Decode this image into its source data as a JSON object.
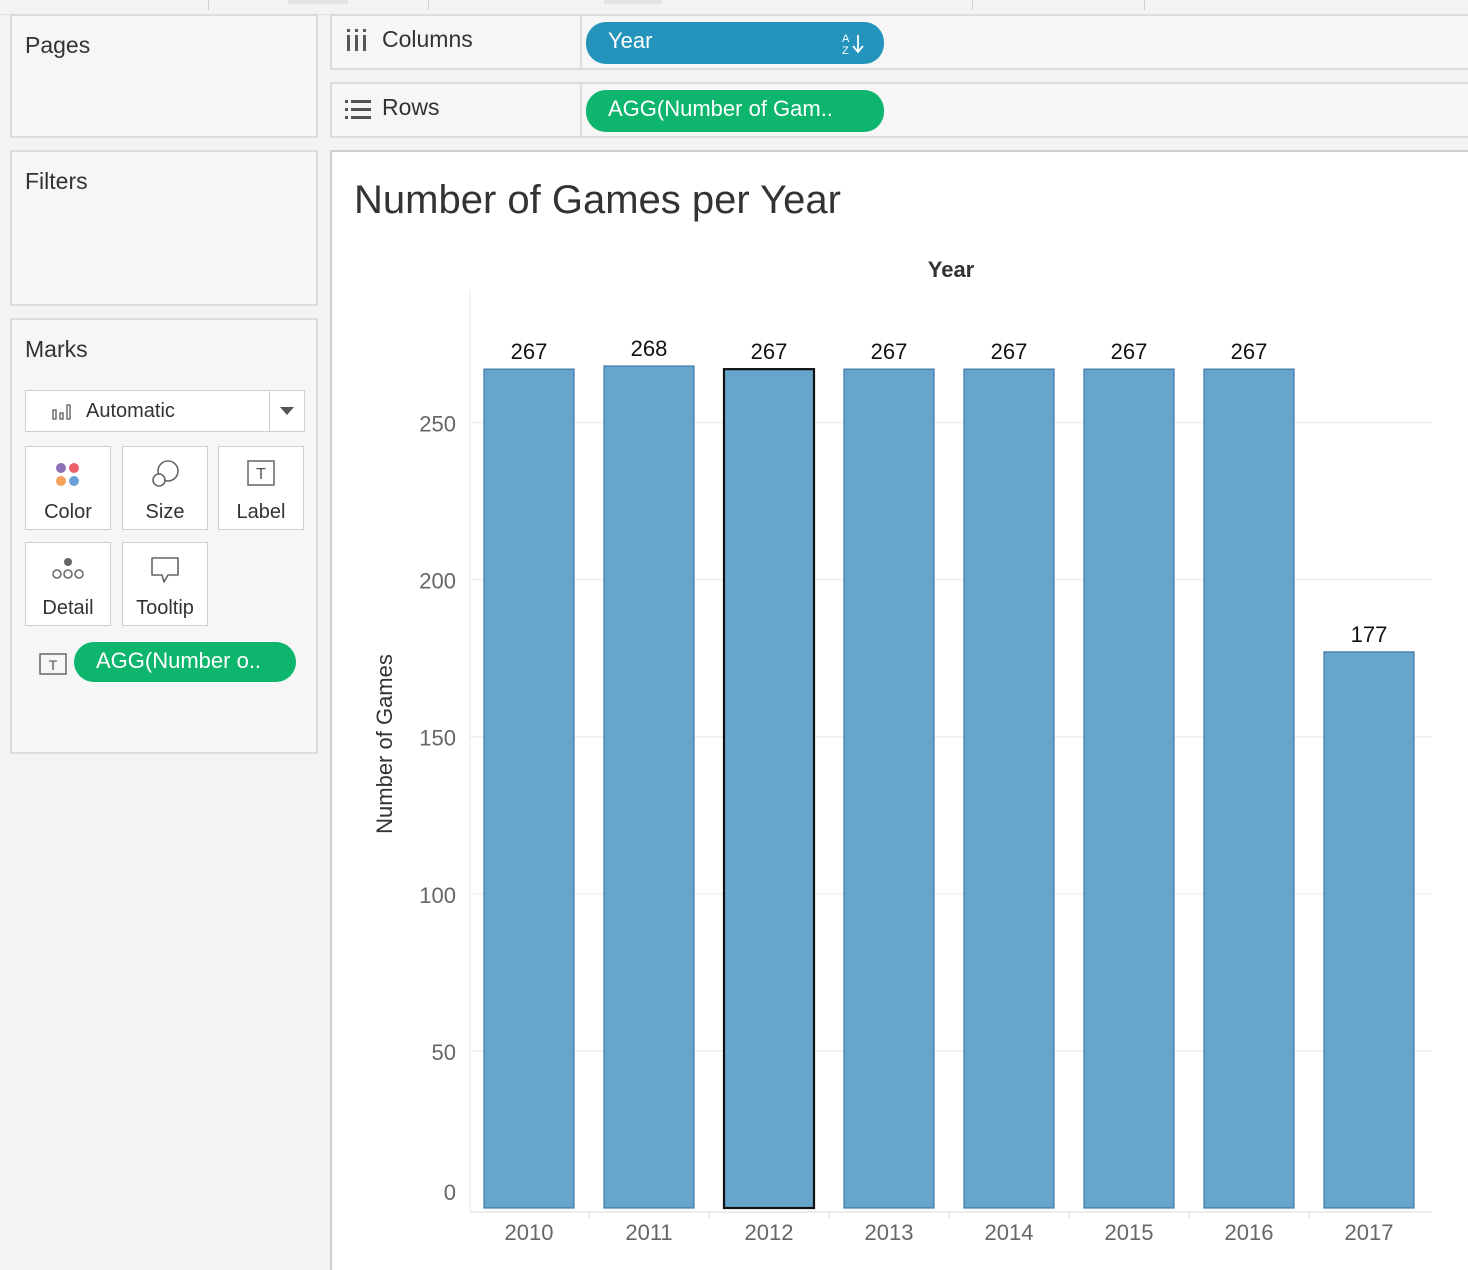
{
  "panels": {
    "pages": {
      "title": "Pages"
    },
    "filters": {
      "title": "Filters"
    },
    "marks": {
      "title": "Marks",
      "mark_type": "Automatic",
      "cards": {
        "color": "Color",
        "size": "Size",
        "label": "Label",
        "detail": "Detail",
        "tooltip": "Tooltip"
      },
      "label_pill": "AGG(Number o.."
    }
  },
  "shelves": {
    "columns": {
      "label": "Columns",
      "pill": "Year"
    },
    "rows": {
      "label": "Rows",
      "pill": "AGG(Number of Gam.."
    }
  },
  "view": {
    "title": "Number of Games per Year"
  },
  "colors": {
    "bar": "#68a5cd",
    "bar_stroke": "#3f79a8",
    "pill_blue": "#2494bd",
    "pill_green": "#0db56d"
  },
  "chart_data": {
    "type": "bar",
    "title": "Number of Games per Year",
    "xlabel": "Year",
    "ylabel": "Number of Games",
    "categories": [
      "2010",
      "2011",
      "2012",
      "2013",
      "2014",
      "2015",
      "2016",
      "2017"
    ],
    "values": [
      267,
      268,
      267,
      267,
      267,
      267,
      267,
      177
    ],
    "data_labels": [
      "267",
      "268",
      "267",
      "267",
      "267",
      "267",
      "267",
      "177"
    ],
    "yticks": [
      0,
      50,
      100,
      150,
      200,
      250
    ],
    "ylim": [
      0,
      268
    ],
    "grid": true,
    "selected_category": "2012"
  }
}
